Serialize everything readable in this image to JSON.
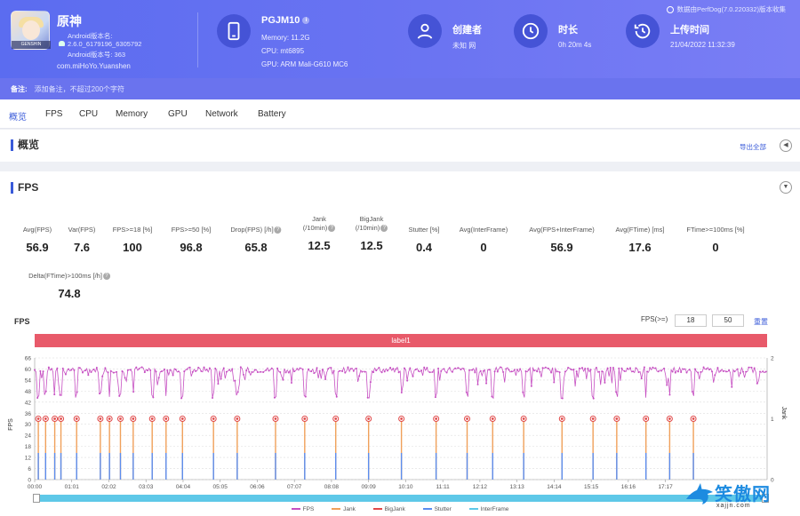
{
  "header": {
    "app_name": "原神",
    "app_version_label": "Android版本名:",
    "app_version_name": "2.6.0_6179196_6305792",
    "app_version_code": "Android版本号: 363",
    "app_package": "com.miHoYo.Yuanshen",
    "device_name": "PGJM10",
    "device_memory": "Memory: 11.2G",
    "device_cpu": "CPU: mt6895",
    "device_gpu": "GPU: ARM Mali-G610 MC6",
    "creator_title": "创建者",
    "creator_value": "未知 网",
    "duration_title": "时长",
    "duration_value": "0h 20m 4s",
    "upload_title": "上传时间",
    "upload_value": "21/04/2022 11:32:39",
    "perfdog_note": "数据由PerfDog(7.0.220332)版本收集",
    "remark_label": "备注:",
    "remark_placeholder": "添加备注，不超过200个字符"
  },
  "tabs": [
    "概览",
    "FPS",
    "CPU",
    "Memory",
    "GPU",
    "Network",
    "Battery"
  ],
  "overview": {
    "title": "概览",
    "export_label": "导出全部"
  },
  "fps_section": {
    "title": "FPS",
    "stats": [
      {
        "label": "Avg(FPS)",
        "value": "56.9"
      },
      {
        "label": "Var(FPS)",
        "value": "7.6"
      },
      {
        "label": "FPS>=18 [%]",
        "value": "100"
      },
      {
        "label": "FPS>=50 [%]",
        "value": "96.8"
      },
      {
        "label": "Drop(FPS) [/h]",
        "value": "65.8"
      },
      {
        "label": "Jank (/10min)",
        "value": "12.5"
      },
      {
        "label": "BigJank (/10min)",
        "value": "12.5"
      },
      {
        "label": "Stutter [%]",
        "value": "0.4"
      },
      {
        "label": "Avg(InterFrame)",
        "value": "0"
      },
      {
        "label": "Avg(FPS+InterFrame)",
        "value": "56.9"
      },
      {
        "label": "Avg(FTime) [ms]",
        "value": "17.6"
      },
      {
        "label": "FTime>=100ms [%]",
        "value": "0"
      }
    ],
    "delta_label": "Delta(FTime)>100ms [/h]",
    "delta_value": "74.8"
  },
  "chart_header": {
    "title": "FPS",
    "filter_label": "FPS(>=)",
    "min": "18",
    "max": "50",
    "reset_label": "重置"
  },
  "chart_data": {
    "type": "line",
    "label_bar": "label1",
    "ylabel": "FPS",
    "y2label": "Jank",
    "yticks": [
      0,
      6,
      12,
      18,
      24,
      30,
      36,
      42,
      48,
      54,
      60,
      66
    ],
    "ylim": [
      0,
      66
    ],
    "y2ticks": [
      0,
      1,
      2
    ],
    "y2lim": [
      0,
      2
    ],
    "xticks": [
      "00:00",
      "01:01",
      "02:02",
      "03:03",
      "04:04",
      "05:05",
      "06:06",
      "07:07",
      "08:08",
      "09:09",
      "10:10",
      "11:11",
      "12:12",
      "13:13",
      "14:14",
      "15:15",
      "16:16",
      "17:17"
    ],
    "x_range_minutes": [
      0,
      20.07
    ],
    "fps_typical": 59,
    "fps_min_observed": 44,
    "jank_events_minutes": [
      0.1,
      0.3,
      0.55,
      0.72,
      1.15,
      1.8,
      2.05,
      2.35,
      2.7,
      3.22,
      3.6,
      4.05,
      4.9,
      5.55,
      6.6,
      7.4,
      8.25,
      9.15,
      10.05,
      11.0,
      11.85,
      12.55,
      13.4,
      14.45,
      15.3,
      15.95,
      16.75,
      17.4,
      18.05
    ],
    "legend": [
      "FPS",
      "Jank",
      "BigJank",
      "Stutter",
      "InterFrame"
    ],
    "colors": {
      "FPS": "#c64fc2",
      "Jank": "#f0a05a",
      "BigJank": "#e04848",
      "Stutter": "#5b8def",
      "InterFrame": "#5ec8e8"
    }
  },
  "watermark": {
    "text": "笑傲网",
    "url": "xajjn.com"
  }
}
